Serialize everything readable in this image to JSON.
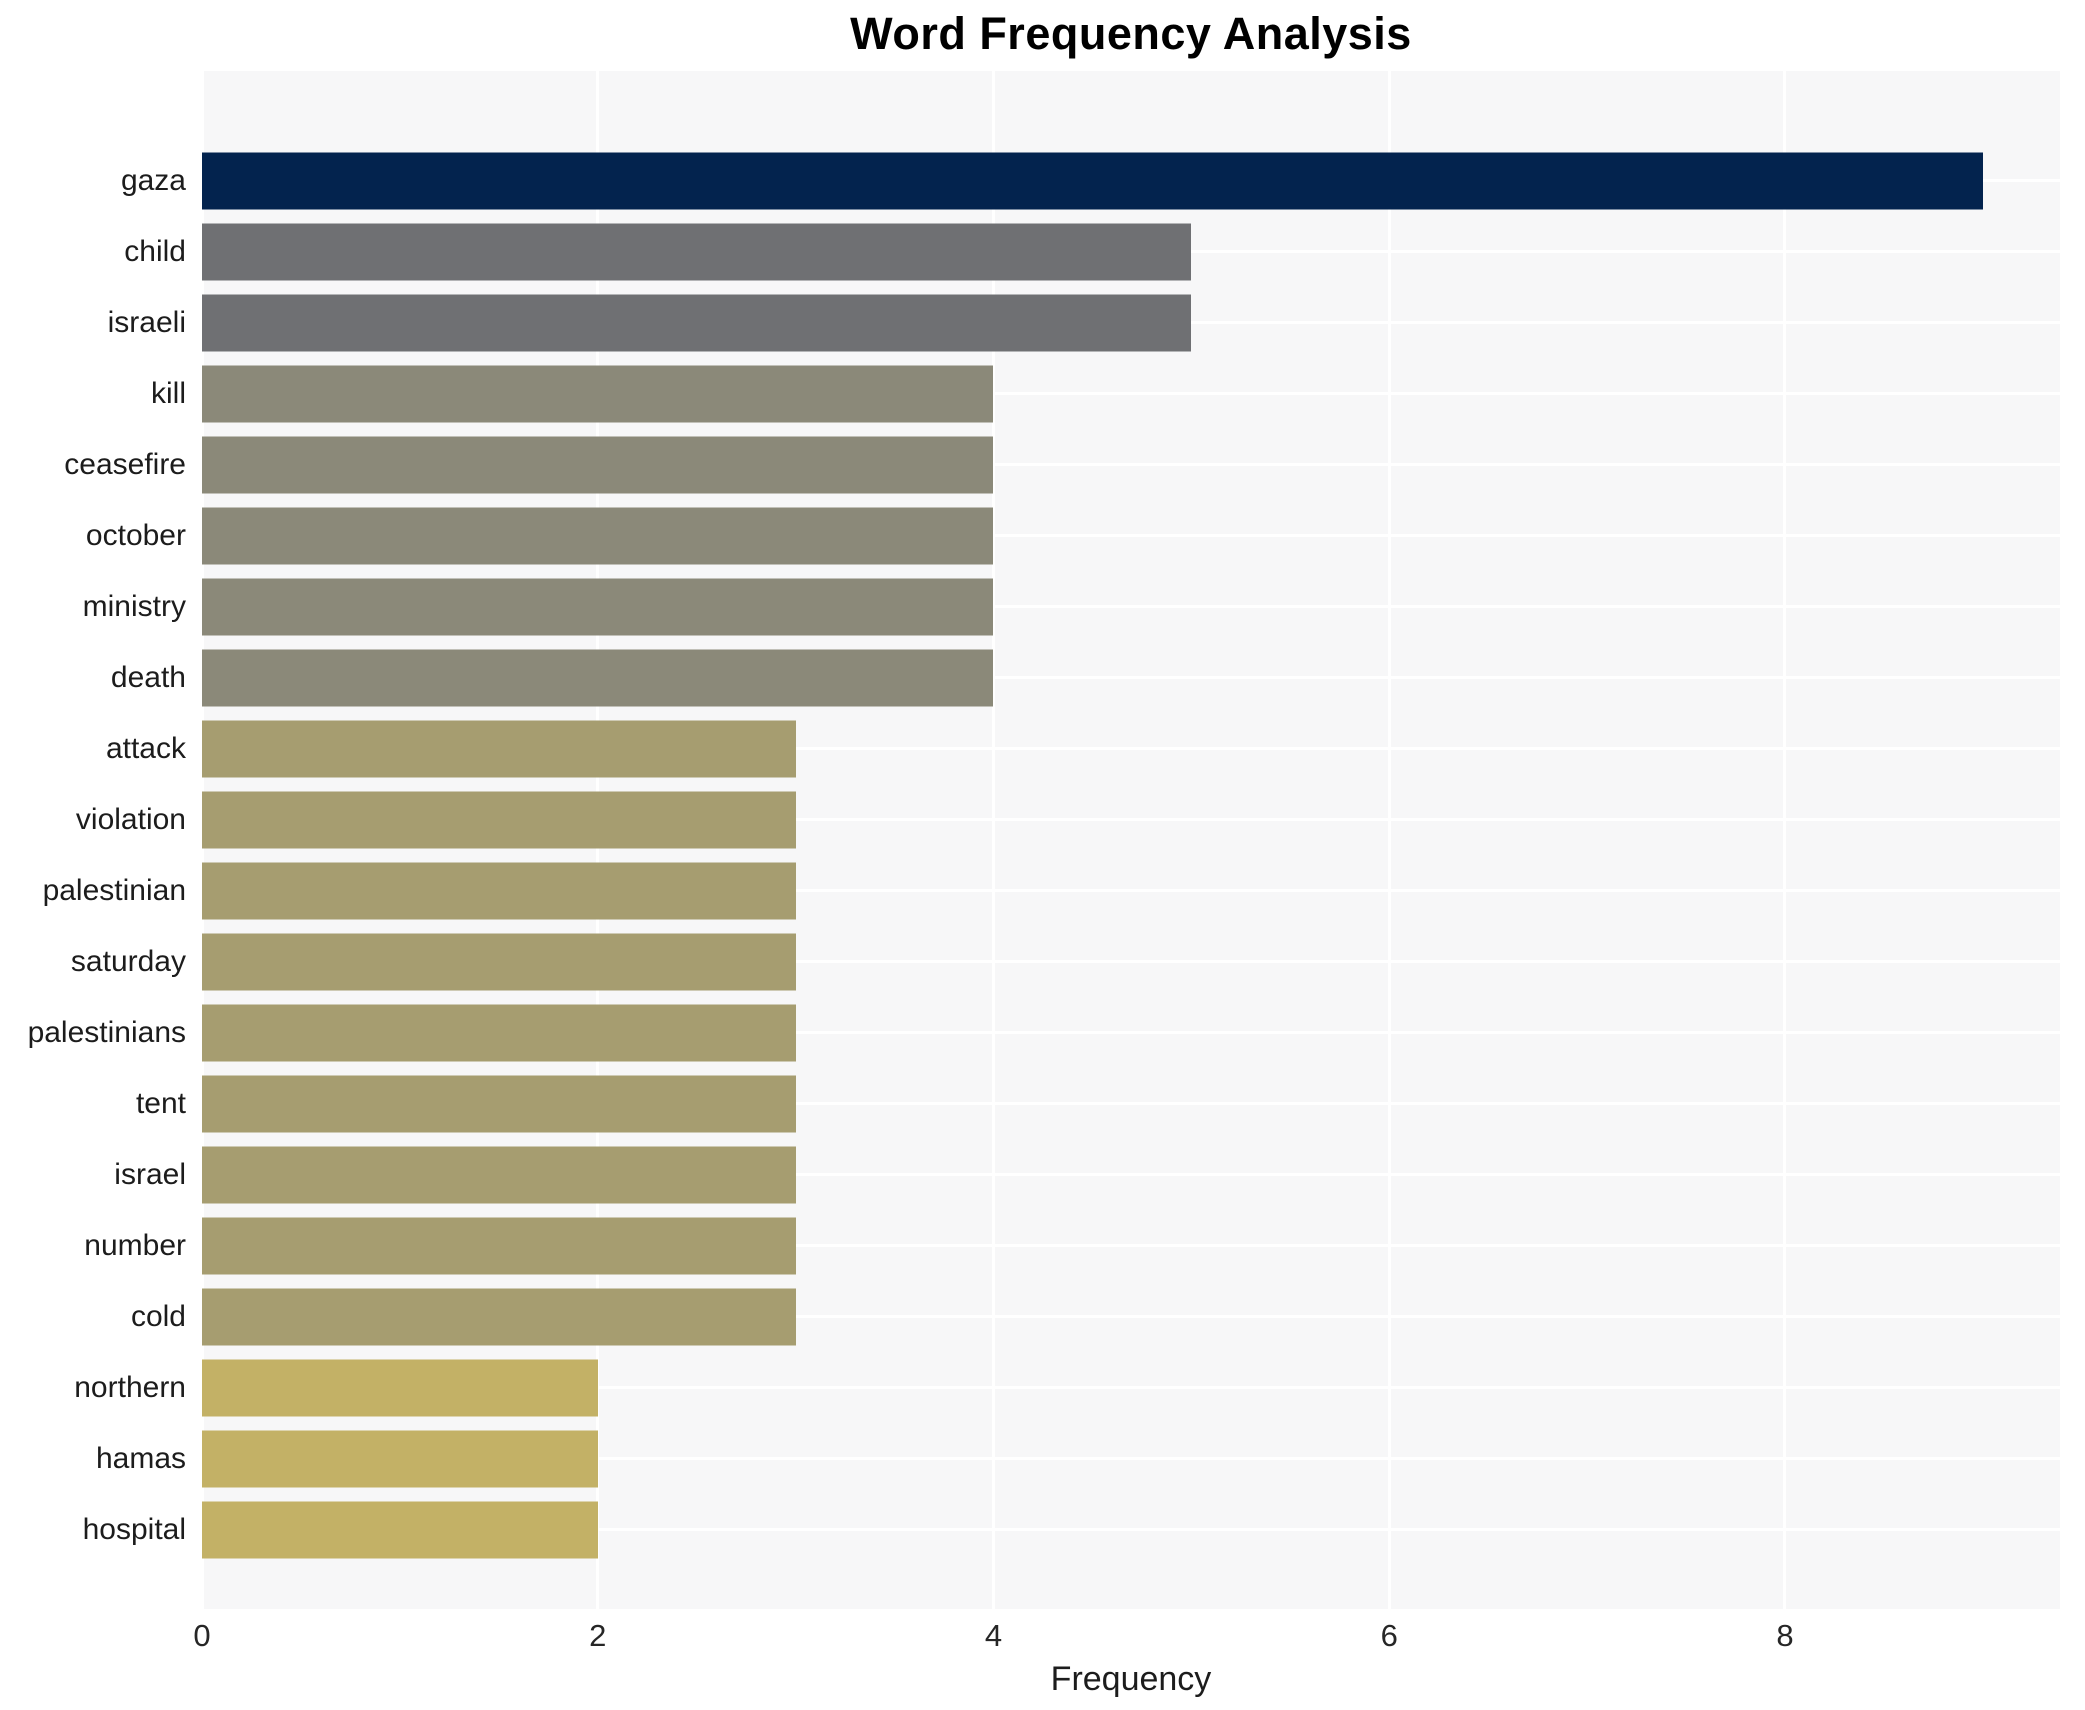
{
  "page": {
    "background": "#ffffff"
  },
  "chart_data": {
    "type": "bar",
    "orientation": "horizontal",
    "title": "Word Frequency Analysis",
    "xlabel": "Frequency",
    "ylabel": "",
    "categories": [
      "gaza",
      "child",
      "israeli",
      "kill",
      "ceasefire",
      "october",
      "ministry",
      "death",
      "attack",
      "violation",
      "palestinian",
      "saturday",
      "palestinians",
      "tent",
      "israel",
      "number",
      "cold",
      "northern",
      "hamas",
      "hospital"
    ],
    "values": [
      9,
      5,
      5,
      4,
      4,
      4,
      4,
      4,
      3,
      3,
      3,
      3,
      3,
      3,
      3,
      3,
      3,
      2,
      2,
      2
    ],
    "bar_colors": [
      "#03234e",
      "#6f7073",
      "#6f7073",
      "#8b8979",
      "#8b8979",
      "#8b8979",
      "#8b8979",
      "#8b8979",
      "#a69d70",
      "#a69d70",
      "#a69d70",
      "#a69d70",
      "#a69d70",
      "#a69d70",
      "#a69d70",
      "#a69d70",
      "#a69d70",
      "#c3b166",
      "#c3b166",
      "#c3b166"
    ],
    "xlim": [
      0,
      9.39
    ],
    "xticks": [
      0,
      2,
      4,
      6,
      8
    ],
    "grid": true,
    "gridline_color": "#ffffff",
    "plot_background": "#f7f7f8",
    "text_color": "#1c1c1c",
    "legend_position": "none"
  }
}
